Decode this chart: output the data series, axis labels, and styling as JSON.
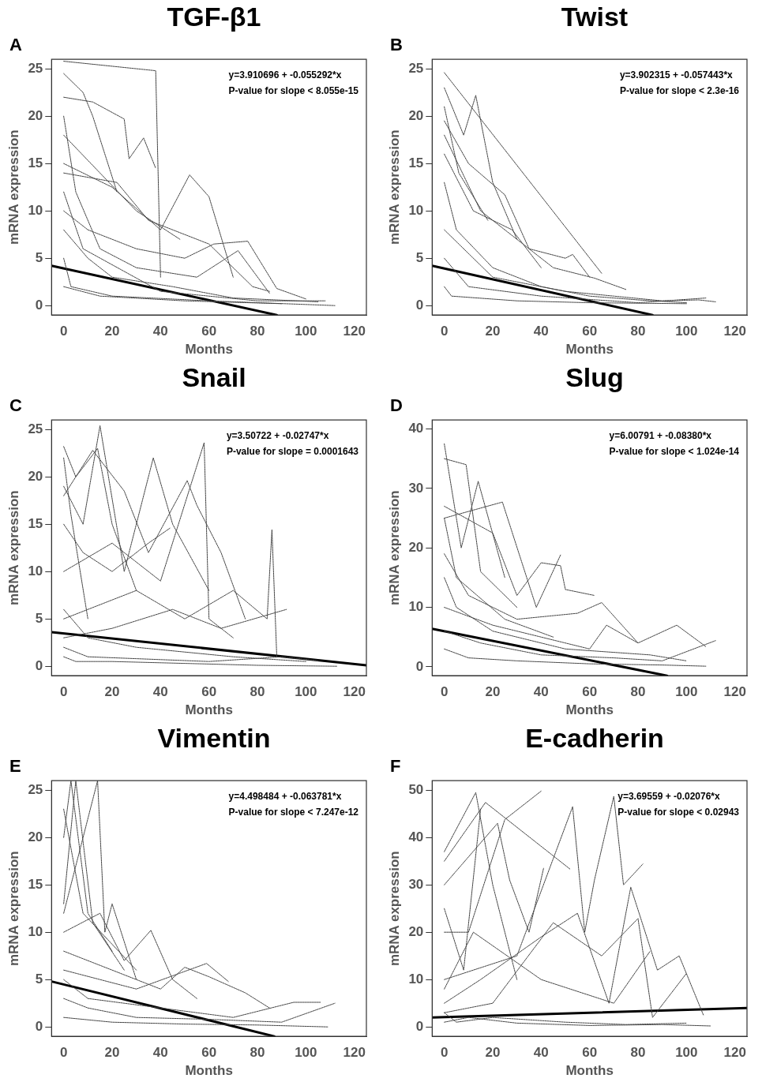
{
  "chart_data": [
    {
      "type": "line",
      "title": "TGF-β1",
      "xlabel": "Months",
      "ylabel": "mRNA expression",
      "annotations": [
        "A",
        "y=3.910696 + -0.055292*x",
        "P-value for slope < 8.055e-15"
      ],
      "xlim": [
        -5,
        125
      ],
      "xticks": [
        0,
        20,
        40,
        60,
        80,
        100,
        120
      ],
      "ylim": [
        -1,
        26
      ],
      "yticks": [
        0,
        5,
        10,
        15,
        20,
        25
      ],
      "series": [
        {
          "color": "#444444",
          "line_style": "dashed",
          "x": [
            0,
            38,
            40
          ],
          "values": [
            25.8,
            24.8,
            3
          ]
        },
        {
          "color": "#444444",
          "line_style": "dashed",
          "x": [
            0,
            8,
            12,
            22
          ],
          "values": [
            24.5,
            22.5,
            20,
            12
          ]
        },
        {
          "color": "#444444",
          "line_style": "dashed",
          "x": [
            0,
            12,
            25,
            27,
            33,
            38
          ],
          "values": [
            22,
            21.5,
            19.7,
            15.5,
            17.7,
            14.5
          ]
        },
        {
          "color": "#444444",
          "line_style": "dashed",
          "x": [
            0,
            20,
            40,
            52,
            60,
            70
          ],
          "values": [
            15,
            12.5,
            8,
            13.8,
            11.5,
            3
          ]
        },
        {
          "color": "#444444",
          "line_style": "dashed",
          "x": [
            0,
            10,
            30,
            50,
            62,
            76,
            88,
            100
          ],
          "values": [
            10,
            8,
            6,
            5,
            6.5,
            6.8,
            1.8,
            0.7
          ]
        },
        {
          "color": "#444444",
          "line_style": "dashed",
          "x": [
            0,
            5,
            15,
            30,
            55,
            72,
            85
          ],
          "values": [
            20,
            12,
            6,
            4,
            3,
            5.8,
            1.3
          ]
        },
        {
          "color": "#444444",
          "line_style": "dashed",
          "x": [
            0,
            10,
            20,
            45,
            70,
            105
          ],
          "values": [
            8,
            5,
            3,
            2,
            0.8,
            0.4
          ]
        },
        {
          "color": "#444444",
          "line_style": "dashed",
          "x": [
            0,
            3,
            20,
            60,
            112
          ],
          "values": [
            5,
            2,
            1,
            0.5,
            0
          ]
        },
        {
          "color": "#444444",
          "line_style": "dashed",
          "x": [
            0,
            8,
            40,
            80,
            108
          ],
          "values": [
            12,
            6,
            1.5,
            0.5,
            0.5
          ]
        },
        {
          "color": "#444444",
          "line_style": "dashed",
          "x": [
            0,
            15,
            50,
            90
          ],
          "values": [
            2,
            1,
            0.5,
            0.2
          ]
        },
        {
          "color": "#444444",
          "line_style": "dashed",
          "x": [
            0,
            30,
            48
          ],
          "values": [
            18,
            10,
            7
          ]
        },
        {
          "color": "#444444",
          "line_style": "dashed",
          "x": [
            0,
            22,
            35,
            60,
            78,
            85
          ],
          "values": [
            14,
            13,
            9,
            6.5,
            2,
            1.5
          ]
        },
        {
          "color": "#000000",
          "line_style": "solid",
          "x": [
            -5,
            88
          ],
          "values": [
            4.2,
            -1
          ]
        }
      ]
    },
    {
      "type": "line",
      "title": "Twist",
      "xlabel": "Months",
      "ylabel": "mRNA expression",
      "annotations": [
        "B",
        "y=3.902315 + -0.057443*x",
        "P-value for slope < 2.3e-16"
      ],
      "xlim": [
        -5,
        125
      ],
      "xticks": [
        0,
        20,
        40,
        60,
        80,
        100,
        120
      ],
      "ylim": [
        -1,
        26
      ],
      "yticks": [
        0,
        5,
        10,
        15,
        20,
        25
      ],
      "series": [
        {
          "color": "#444444",
          "line_style": "dashed",
          "x": [
            0,
            65
          ],
          "values": [
            24.6,
            3.4
          ]
        },
        {
          "color": "#444444",
          "line_style": "dashed",
          "x": [
            0,
            8,
            13,
            20,
            30
          ],
          "values": [
            23,
            18,
            22.2,
            13,
            7
          ]
        },
        {
          "color": "#444444",
          "line_style": "dashed",
          "x": [
            0,
            10,
            25,
            35,
            50,
            53,
            60
          ],
          "values": [
            19.5,
            15,
            11.7,
            6,
            5,
            5.4,
            3
          ]
        },
        {
          "color": "#444444",
          "line_style": "dashed",
          "x": [
            0,
            15,
            30,
            45,
            62,
            75
          ],
          "values": [
            18,
            10,
            7,
            4,
            2.9,
            1.7
          ]
        },
        {
          "color": "#444444",
          "line_style": "dashed",
          "x": [
            0,
            5,
            20,
            40,
            60,
            80,
            100
          ],
          "values": [
            13,
            8,
            4,
            2,
            1,
            0.6,
            0.3
          ]
        },
        {
          "color": "#444444",
          "line_style": "dashed",
          "x": [
            0,
            20,
            50,
            70,
            90,
            105,
            112
          ],
          "values": [
            8,
            3,
            1.5,
            1,
            0.5,
            0.6,
            0.4
          ]
        },
        {
          "color": "#444444",
          "line_style": "dashed",
          "x": [
            0,
            10,
            40,
            80,
            108
          ],
          "values": [
            5,
            2,
            1,
            0.3,
            0.8
          ]
        },
        {
          "color": "#444444",
          "line_style": "dashed",
          "x": [
            0,
            3,
            30,
            60,
            100
          ],
          "values": [
            2,
            1,
            0.5,
            0.3,
            0.2
          ]
        },
        {
          "color": "#444444",
          "line_style": "dashed",
          "x": [
            0,
            12,
            28,
            40
          ],
          "values": [
            16,
            10,
            8,
            4
          ]
        },
        {
          "color": "#444444",
          "line_style": "dashed",
          "x": [
            0,
            6,
            18
          ],
          "values": [
            21,
            14,
            9
          ]
        },
        {
          "color": "#000000",
          "line_style": "solid",
          "x": [
            -5,
            86
          ],
          "values": [
            4.2,
            -1
          ]
        }
      ]
    },
    {
      "type": "line",
      "title": "Snail",
      "xlabel": "Months",
      "ylabel": "mRNA expression",
      "annotations": [
        "C",
        "y=3.50722 + -0.02747*x",
        "P-value for slope = 0.0001643"
      ],
      "xlim": [
        -5,
        125
      ],
      "xticks": [
        0,
        20,
        40,
        60,
        80,
        100,
        120
      ],
      "ylim": [
        -1,
        26
      ],
      "yticks": [
        0,
        5,
        10,
        15,
        20,
        25
      ],
      "series": [
        {
          "color": "#444444",
          "line_style": "dashed",
          "x": [
            0,
            5,
            14,
            20,
            30
          ],
          "values": [
            23.2,
            20,
            23,
            15,
            8
          ]
        },
        {
          "color": "#444444",
          "line_style": "dashed",
          "x": [
            0,
            8,
            15,
            25,
            37,
            45,
            60
          ],
          "values": [
            19,
            15,
            25.4,
            10,
            22,
            15,
            8
          ]
        },
        {
          "color": "#444444",
          "line_style": "dashed",
          "x": [
            0,
            12,
            25,
            35,
            51,
            55,
            65,
            75
          ],
          "values": [
            18,
            22.8,
            18.5,
            12,
            19.6,
            17,
            12,
            5
          ]
        },
        {
          "color": "#444444",
          "line_style": "dashed",
          "x": [
            0,
            20,
            40,
            58,
            60,
            70
          ],
          "values": [
            10,
            13,
            9,
            23.6,
            5,
            3
          ]
        },
        {
          "color": "#444444",
          "line_style": "dashed",
          "x": [
            0,
            30,
            50,
            70,
            84,
            86,
            88
          ],
          "values": [
            5,
            8,
            5,
            8,
            5,
            14.4,
            1
          ]
        },
        {
          "color": "#444444",
          "line_style": "dashed",
          "x": [
            0,
            20,
            45,
            65,
            92
          ],
          "values": [
            3,
            4,
            6,
            4,
            6
          ]
        },
        {
          "color": "#444444",
          "line_style": "dashed",
          "x": [
            0,
            10,
            30,
            60,
            90,
            105
          ],
          "values": [
            2,
            1,
            0.8,
            0.5,
            1,
            0.6
          ]
        },
        {
          "color": "#444444",
          "line_style": "dashed",
          "x": [
            0,
            5,
            20,
            50,
            80,
            113
          ],
          "values": [
            1,
            0.5,
            0.5,
            0.3,
            0.1,
            0
          ]
        },
        {
          "color": "#444444",
          "line_style": "dashed",
          "x": [
            0,
            8,
            20,
            35,
            44
          ],
          "values": [
            15,
            12,
            10,
            13,
            14.6
          ]
        },
        {
          "color": "#444444",
          "line_style": "dashed",
          "x": [
            0,
            3,
            10
          ],
          "values": [
            22,
            16,
            5
          ]
        },
        {
          "color": "#444444",
          "line_style": "dashed",
          "x": [
            0,
            10,
            30,
            70,
            100
          ],
          "values": [
            6,
            3,
            2,
            1,
            0.5
          ]
        },
        {
          "color": "#000000",
          "line_style": "solid",
          "x": [
            -5,
            125
          ],
          "values": [
            3.6,
            0.1
          ]
        }
      ]
    },
    {
      "type": "line",
      "title": "Slug",
      "xlabel": "Months",
      "ylabel": "mRNA expression",
      "annotations": [
        "D",
        "y=6.00791 + -0.08380*x",
        "P-value for slope < 1.024e-14"
      ],
      "xlim": [
        -5,
        125
      ],
      "xticks": [
        0,
        20,
        40,
        60,
        80,
        100,
        120
      ],
      "ylim": [
        -1.5,
        41.5
      ],
      "yticks": [
        0,
        10,
        20,
        30,
        40
      ],
      "series": [
        {
          "color": "#444444",
          "line_style": "dashed",
          "x": [
            0,
            7,
            14,
            25
          ],
          "values": [
            37.5,
            20,
            31.2,
            15
          ]
        },
        {
          "color": "#444444",
          "line_style": "dashed",
          "x": [
            0,
            9,
            15,
            30
          ],
          "values": [
            35,
            34,
            16,
            10
          ]
        },
        {
          "color": "#444444",
          "line_style": "dashed",
          "x": [
            0,
            20,
            30,
            40,
            48,
            50,
            62
          ],
          "values": [
            27,
            22.5,
            12,
            17.5,
            17,
            13,
            12
          ]
        },
        {
          "color": "#444444",
          "line_style": "dashed",
          "x": [
            0,
            24,
            38,
            48
          ],
          "values": [
            25,
            27.7,
            10,
            18.8
          ]
        },
        {
          "color": "#444444",
          "line_style": "dashed",
          "x": [
            0,
            10,
            30,
            55,
            65,
            80
          ],
          "values": [
            19,
            12,
            8,
            9,
            10.8,
            4
          ]
        },
        {
          "color": "#444444",
          "line_style": "dashed",
          "x": [
            0,
            20,
            40,
            60,
            67,
            80,
            96,
            108
          ],
          "values": [
            10,
            7,
            5,
            3,
            7,
            4,
            7,
            3.4
          ]
        },
        {
          "color": "#444444",
          "line_style": "dashed",
          "x": [
            0,
            15,
            40,
            70,
            90,
            112
          ],
          "values": [
            6,
            4,
            2,
            1.5,
            1,
            4.4
          ]
        },
        {
          "color": "#444444",
          "line_style": "dashed",
          "x": [
            0,
            10,
            30,
            60,
            90,
            108
          ],
          "values": [
            3,
            1.5,
            1,
            0.5,
            0.3,
            0.1
          ]
        },
        {
          "color": "#444444",
          "line_style": "dashed",
          "x": [
            0,
            5,
            20,
            50,
            85,
            100
          ],
          "values": [
            15,
            10,
            6,
            3,
            2,
            1
          ]
        },
        {
          "color": "#444444",
          "line_style": "dashed",
          "x": [
            0,
            5,
            25,
            45
          ],
          "values": [
            25,
            15,
            8,
            5
          ]
        },
        {
          "color": "#000000",
          "line_style": "solid",
          "x": [
            -5,
            92
          ],
          "values": [
            6.4,
            -1.5
          ]
        }
      ]
    },
    {
      "type": "line",
      "title": "Vimentin",
      "xlabel": "Months",
      "ylabel": "mRNA expression",
      "annotations": [
        "E",
        "y=4.498484 + -0.063781*x",
        "P-value for slope < 7.247e-12"
      ],
      "xlim": [
        -5,
        125
      ],
      "xticks": [
        0,
        20,
        40,
        60,
        80,
        100,
        120
      ],
      "ylim": [
        -1,
        26
      ],
      "yticks": [
        0,
        5,
        10,
        15,
        20,
        25
      ],
      "series": [
        {
          "color": "#444444",
          "line_style": "dashed",
          "x": [
            0,
            3,
            10,
            20
          ],
          "values": [
            20,
            26,
            12,
            8
          ]
        },
        {
          "color": "#444444",
          "line_style": "dashed",
          "x": [
            0,
            5,
            12,
            25
          ],
          "values": [
            13,
            26,
            11,
            6
          ]
        },
        {
          "color": "#444444",
          "line_style": "dashed",
          "x": [
            0,
            14,
            17,
            20,
            30
          ],
          "values": [
            12,
            26,
            10,
            13,
            5
          ]
        },
        {
          "color": "#444444",
          "line_style": "dashed",
          "x": [
            0,
            15,
            25,
            36,
            45,
            55
          ],
          "values": [
            10,
            12,
            7,
            10.2,
            5,
            3
          ]
        },
        {
          "color": "#444444",
          "line_style": "dashed",
          "x": [
            0,
            20,
            40,
            50,
            60,
            75,
            85
          ],
          "values": [
            8,
            6,
            4,
            6.3,
            5.3,
            3.6,
            2
          ]
        },
        {
          "color": "#444444",
          "line_style": "dashed",
          "x": [
            0,
            30,
            59,
            68
          ],
          "values": [
            6,
            4,
            6.7,
            4.8
          ]
        },
        {
          "color": "#444444",
          "line_style": "dashed",
          "x": [
            0,
            10,
            40,
            70,
            95,
            106
          ],
          "values": [
            5,
            3,
            2,
            1,
            2.6,
            2.6
          ]
        },
        {
          "color": "#444444",
          "line_style": "dashed",
          "x": [
            0,
            10,
            30,
            60,
            90,
            112
          ],
          "values": [
            3,
            2,
            1,
            0.8,
            0.5,
            2.5
          ]
        },
        {
          "color": "#444444",
          "line_style": "dashed",
          "x": [
            0,
            20,
            50,
            80,
            109
          ],
          "values": [
            1,
            0.5,
            0.3,
            0.2,
            0
          ]
        },
        {
          "color": "#444444",
          "line_style": "dashed",
          "x": [
            0,
            8,
            30
          ],
          "values": [
            23,
            12,
            6
          ]
        },
        {
          "color": "#000000",
          "line_style": "solid",
          "x": [
            -5,
            87
          ],
          "values": [
            4.8,
            -1
          ]
        }
      ]
    },
    {
      "type": "line",
      "title": "E-cadherin",
      "xlabel": "Months",
      "ylabel": "mRNA expression",
      "annotations": [
        "F",
        "y=3.69559 + -0.02076*x",
        "P-value for slope < 0.02943"
      ],
      "xlim": [
        -5,
        125
      ],
      "xticks": [
        0,
        20,
        40,
        60,
        80,
        100,
        120
      ],
      "ylim": [
        -2,
        52
      ],
      "yticks": [
        0,
        10,
        20,
        30,
        40,
        50
      ],
      "series": [
        {
          "color": "#444444",
          "line_style": "dashed",
          "x": [
            0,
            13,
            20,
            30
          ],
          "values": [
            37,
            49.5,
            30,
            10
          ]
        },
        {
          "color": "#444444",
          "line_style": "dashed",
          "x": [
            0,
            17,
            52
          ],
          "values": [
            35,
            47.4,
            33.3
          ]
        },
        {
          "color": "#444444",
          "line_style": "dashed",
          "x": [
            0,
            10,
            25,
            40
          ],
          "values": [
            20,
            20,
            43.8,
            49.8
          ]
        },
        {
          "color": "#444444",
          "line_style": "dashed",
          "x": [
            0,
            22,
            27,
            35,
            41
          ],
          "values": [
            30,
            43,
            31,
            20,
            33.5
          ]
        },
        {
          "color": "#444444",
          "line_style": "dashed",
          "x": [
            0,
            30,
            53,
            58,
            62,
            70,
            74,
            82
          ],
          "values": [
            10,
            15,
            46.5,
            20,
            31,
            48.7,
            30,
            34.4
          ]
        },
        {
          "color": "#444444",
          "line_style": "dashed",
          "x": [
            0,
            15,
            40,
            55,
            68,
            77,
            88,
            97,
            107
          ],
          "values": [
            5,
            10,
            19,
            24,
            5,
            29.5,
            12,
            15,
            2.5
          ]
        },
        {
          "color": "#444444",
          "line_style": "dashed",
          "x": [
            0,
            20,
            45,
            65,
            80,
            86,
            100
          ],
          "values": [
            3,
            5,
            22,
            15,
            22.9,
            2,
            11.3
          ]
        },
        {
          "color": "#444444",
          "line_style": "dashed",
          "x": [
            0,
            10,
            30,
            60,
            90,
            110
          ],
          "values": [
            1,
            2,
            0.8,
            0.3,
            0.5,
            0.2
          ]
        },
        {
          "color": "#444444",
          "line_style": "dashed",
          "x": [
            0,
            5,
            20,
            50,
            75,
            100
          ],
          "values": [
            3,
            1,
            2,
            1,
            0.5,
            0.8
          ]
        },
        {
          "color": "#444444",
          "line_style": "dashed",
          "x": [
            0,
            8,
            15
          ],
          "values": [
            25,
            12,
            46
          ]
        },
        {
          "color": "#444444",
          "line_style": "dashed",
          "x": [
            0,
            12,
            40,
            70,
            85
          ],
          "values": [
            8,
            20,
            10,
            5,
            16
          ]
        },
        {
          "color": "#000000",
          "line_style": "solid",
          "x": [
            -5,
            125
          ],
          "values": [
            2,
            4
          ]
        }
      ]
    }
  ]
}
